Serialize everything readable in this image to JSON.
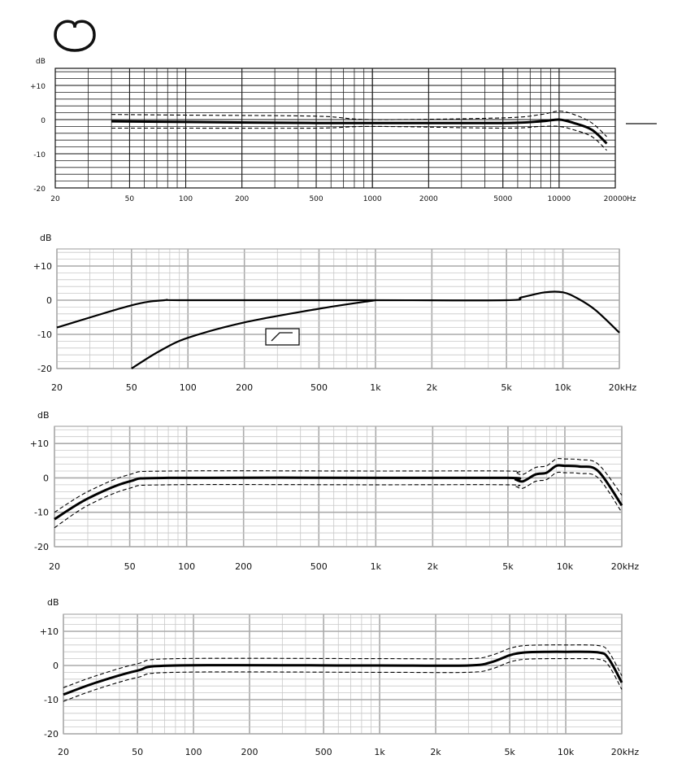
{
  "chart_data": [
    {
      "type": "line",
      "ylabel": "dB",
      "xlabel": "Hz",
      "x_scale": "log",
      "xlim": [
        20,
        20000
      ],
      "ylim": [
        -20,
        15
      ],
      "x_ticks": [
        20,
        50,
        100,
        200,
        500,
        1000,
        2000,
        5000,
        10000,
        20000
      ],
      "x_tick_labels": [
        "20",
        "50",
        "100",
        "200",
        "500",
        "1000",
        "2000",
        "5000",
        "10000",
        "20000"
      ],
      "y_ticks": [
        10,
        0,
        -10,
        -20
      ],
      "y_tick_labels": [
        "+10",
        "0",
        "-10",
        "-20"
      ],
      "grid": true,
      "icon": "cardioid-polar-pattern-icon",
      "series": [
        {
          "style": "solid-thick",
          "x": [
            40,
            100,
            500,
            1000,
            5000,
            8000,
            10000,
            12000,
            15000,
            18000
          ],
          "y": [
            -0.5,
            -0.7,
            -1,
            -1,
            -1,
            -0.5,
            0,
            -1,
            -3,
            -7
          ]
        },
        {
          "style": "dashed",
          "x": [
            40,
            100,
            500,
            1000,
            5000,
            8000,
            10000,
            12000,
            15000,
            18000
          ],
          "y": [
            1.5,
            1.3,
            1,
            0,
            0.5,
            1.5,
            2.5,
            1.5,
            -1,
            -5
          ]
        },
        {
          "style": "dashed",
          "x": [
            40,
            100,
            500,
            1000,
            5000,
            8000,
            10000,
            12000,
            15000,
            18000
          ],
          "y": [
            -2.5,
            -2.5,
            -2.5,
            -2,
            -2.5,
            -2,
            -2,
            -3,
            -5,
            -9
          ]
        }
      ]
    },
    {
      "type": "line",
      "ylabel": "dB",
      "x_scale": "log",
      "xlim": [
        20,
        20000
      ],
      "ylim": [
        -20,
        15
      ],
      "x_ticks": [
        20,
        50,
        100,
        200,
        500,
        1000,
        2000,
        5000,
        10000,
        20000
      ],
      "x_tick_labels": [
        "20",
        "50",
        "100",
        "200",
        "500",
        "1k",
        "2k",
        "5k",
        "10k",
        "20kHz"
      ],
      "y_ticks": [
        10,
        0,
        -10,
        -20
      ],
      "y_tick_labels": [
        "+10",
        "0",
        "-10",
        "-20"
      ],
      "grid": true,
      "icon": "low-cut-filter-icon",
      "series": [
        {
          "style": "solid",
          "x": [
            20,
            50,
            75,
            100,
            1000,
            5000,
            6000,
            8000,
            10000,
            12000,
            15000,
            20000
          ],
          "y": [
            -8,
            -1.5,
            0,
            0,
            0,
            0,
            0.8,
            2.3,
            2.3,
            0.5,
            -3,
            -9.5
          ]
        },
        {
          "style": "solid",
          "x": [
            50,
            70,
            100,
            200,
            500,
            1000
          ],
          "y": [
            -20,
            -15,
            -11,
            -6.5,
            -2.5,
            0
          ]
        }
      ]
    },
    {
      "type": "line",
      "ylabel": "dB",
      "x_scale": "log",
      "xlim": [
        20,
        20000
      ],
      "ylim": [
        -20,
        15
      ],
      "x_ticks": [
        20,
        50,
        100,
        200,
        500,
        1000,
        2000,
        5000,
        10000,
        20000
      ],
      "x_tick_labels": [
        "20",
        "50",
        "100",
        "200",
        "500",
        "1k",
        "2k",
        "5k",
        "10k",
        "20kHz"
      ],
      "y_ticks": [
        10,
        0,
        -10,
        -20
      ],
      "y_tick_labels": [
        "+10",
        "0",
        "-10",
        "-20"
      ],
      "grid": true,
      "series": [
        {
          "style": "solid-thick",
          "x": [
            20,
            30,
            50,
            80,
            1000,
            5000,
            5500,
            6000,
            7000,
            8000,
            9000,
            10000,
            12000,
            15000,
            20000
          ],
          "y": [
            -12,
            -6,
            -1,
            0,
            0,
            0,
            -0.5,
            -1,
            1,
            1.5,
            3.5,
            3.5,
            3.3,
            2,
            -8
          ]
        },
        {
          "style": "dashed",
          "x": [
            20,
            30,
            50,
            80,
            1000,
            5000,
            5500,
            6000,
            7000,
            8000,
            9000,
            10000,
            12000,
            15000,
            20000
          ],
          "y": [
            -10,
            -4,
            1,
            2,
            2,
            2,
            1.5,
            1,
            3,
            3.5,
            5.5,
            5.5,
            5.3,
            4,
            -5
          ]
        },
        {
          "style": "dashed",
          "x": [
            20,
            30,
            50,
            80,
            1000,
            5000,
            5500,
            6000,
            7000,
            8000,
            9000,
            10000,
            12000,
            15000,
            20000
          ],
          "y": [
            -14.5,
            -8,
            -3,
            -2,
            -2,
            -2,
            -2.5,
            -3,
            -1,
            -0.5,
            1.5,
            1.5,
            1.3,
            0,
            -10
          ]
        }
      ]
    },
    {
      "type": "line",
      "ylabel": "dB",
      "x_scale": "log",
      "xlim": [
        20,
        20000
      ],
      "ylim": [
        -20,
        15
      ],
      "x_ticks": [
        20,
        50,
        100,
        200,
        500,
        1000,
        2000,
        5000,
        10000,
        20000
      ],
      "x_tick_labels": [
        "20",
        "50",
        "100",
        "200",
        "500",
        "1k",
        "2k",
        "5k",
        "10k",
        "20kHz"
      ],
      "y_ticks": [
        10,
        0,
        -10,
        -20
      ],
      "y_tick_labels": [
        "+10",
        "0",
        "-10",
        "-20"
      ],
      "grid": true,
      "series": [
        {
          "style": "solid-thick",
          "x": [
            20,
            30,
            50,
            80,
            1000,
            3000,
            4000,
            5000,
            6000,
            8000,
            10000,
            15000,
            17000,
            20000
          ],
          "y": [
            -8.5,
            -5,
            -1.5,
            0,
            0,
            0,
            1,
            3,
            3.8,
            4,
            4,
            3.8,
            2,
            -5
          ]
        },
        {
          "style": "dashed",
          "x": [
            20,
            30,
            50,
            80,
            1000,
            3000,
            4000,
            5000,
            6000,
            8000,
            10000,
            15000,
            17000,
            20000
          ],
          "y": [
            -6.5,
            -3,
            0.5,
            2,
            2,
            2,
            3,
            5,
            5.8,
            6,
            6,
            5.8,
            4,
            -3
          ]
        },
        {
          "style": "dashed",
          "x": [
            20,
            30,
            50,
            80,
            1000,
            3000,
            4000,
            5000,
            6000,
            8000,
            10000,
            15000,
            17000,
            20000
          ],
          "y": [
            -10.5,
            -7,
            -3.5,
            -2,
            -2,
            -2,
            -1,
            1,
            1.8,
            2,
            2,
            1.8,
            0,
            -7
          ]
        }
      ]
    }
  ]
}
